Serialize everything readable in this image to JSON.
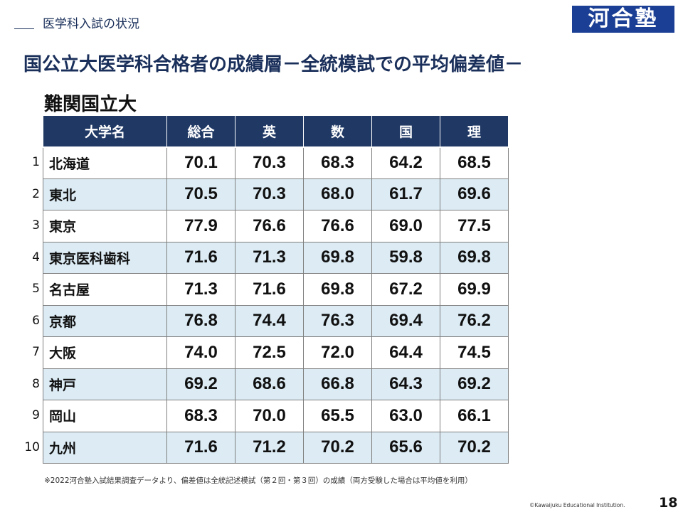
{
  "header": {
    "section_title": "医学科入試の状況",
    "logo_text": "河合塾",
    "main_title": "国公立大医学科合格者の成績層－全統模試での平均偏差値－",
    "sub_title": "難関国立大"
  },
  "table": {
    "columns": [
      "大学名",
      "総合",
      "英",
      "数",
      "国",
      "理"
    ],
    "rows": [
      {
        "rank": "1",
        "name": "北海道",
        "values": [
          "70.1",
          "70.3",
          "68.3",
          "64.2",
          "68.5"
        ]
      },
      {
        "rank": "2",
        "name": "東北",
        "values": [
          "70.5",
          "70.3",
          "68.0",
          "61.7",
          "69.6"
        ]
      },
      {
        "rank": "3",
        "name": "東京",
        "values": [
          "77.9",
          "76.6",
          "76.6",
          "69.0",
          "77.5"
        ]
      },
      {
        "rank": "4",
        "name": "東京医科歯科",
        "values": [
          "71.6",
          "71.3",
          "69.8",
          "59.8",
          "69.8"
        ]
      },
      {
        "rank": "5",
        "name": "名古屋",
        "values": [
          "71.3",
          "71.6",
          "69.8",
          "67.2",
          "69.9"
        ]
      },
      {
        "rank": "6",
        "name": "京都",
        "values": [
          "76.8",
          "74.4",
          "76.3",
          "69.4",
          "76.2"
        ]
      },
      {
        "rank": "7",
        "name": "大阪",
        "values": [
          "74.0",
          "72.5",
          "72.0",
          "64.4",
          "74.5"
        ]
      },
      {
        "rank": "8",
        "name": "神戸",
        "values": [
          "69.2",
          "68.6",
          "66.8",
          "64.3",
          "69.2"
        ]
      },
      {
        "rank": "9",
        "name": "岡山",
        "values": [
          "68.3",
          "70.0",
          "65.5",
          "63.0",
          "66.1"
        ]
      },
      {
        "rank": "10",
        "name": "九州",
        "values": [
          "71.6",
          "71.2",
          "70.2",
          "65.6",
          "70.2"
        ]
      }
    ]
  },
  "footer": {
    "footnote": "※2022河合塾入試結果調査データより、偏差値は全統記述模試（第２回・第３回）の成績（両方受験した場合は平均値を利用）",
    "copyright": "©Kawaijuku Educational Institution.",
    "page_number": "18"
  },
  "colors": {
    "header_bg": "#1f3864",
    "stripe": "#dcebf4",
    "title": "#1a2f5a",
    "logo": "#1b3f94"
  }
}
